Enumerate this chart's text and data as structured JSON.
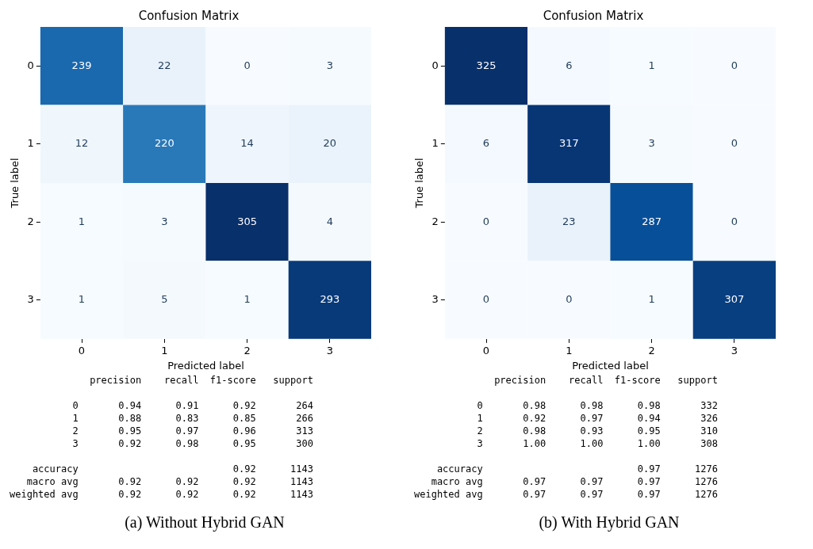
{
  "chart_data": [
    {
      "type": "heatmap",
      "title": "Confusion Matrix",
      "xlabel": "Predicted label",
      "ylabel": "True label",
      "categories": [
        "0",
        "1",
        "2",
        "3"
      ],
      "y_categories": [
        "0",
        "1",
        "2",
        "3"
      ],
      "cells": [
        [
          239,
          22,
          0,
          3
        ],
        [
          12,
          220,
          14,
          20
        ],
        [
          1,
          3,
          305,
          4
        ],
        [
          1,
          5,
          1,
          293
        ]
      ],
      "data_labels": true,
      "annotations": [
        "              precision    recall  f1-score   support",
        "           0       0.94      0.91      0.92       264",
        "           1       0.88      0.83      0.85       266",
        "           2       0.95      0.97      0.96       313",
        "           3       0.92      0.98      0.95       300",
        "    accuracy                           0.92      1143",
        "   macro avg       0.92      0.92      0.92      1143",
        "weighted avg       0.92      0.92      0.92      1143",
        "(a) Without Hybrid GAN"
      ]
    },
    {
      "type": "heatmap",
      "title": "Confusion Matrix",
      "xlabel": "Predicted label",
      "ylabel": "True label",
      "categories": [
        "0",
        "1",
        "2",
        "3"
      ],
      "y_categories": [
        "0",
        "1",
        "2",
        "3"
      ],
      "cells": [
        [
          325,
          6,
          1,
          0
        ],
        [
          6,
          317,
          3,
          0
        ],
        [
          0,
          23,
          287,
          0
        ],
        [
          0,
          0,
          1,
          307
        ]
      ],
      "data_labels": true,
      "annotations": [
        "              precision    recall  f1-score   support",
        "           0       0.98      0.98      0.98       332",
        "           1       0.92      0.97      0.94       326",
        "           2       0.98      0.93      0.95       310",
        "           3       1.00      1.00      1.00       308",
        "    accuracy                           0.97      1276",
        "   macro avg       0.97      0.97      0.97      1276",
        "weighted avg       0.97      0.97      0.97      1276",
        "(b) With Hybrid GAN"
      ]
    }
  ]
}
